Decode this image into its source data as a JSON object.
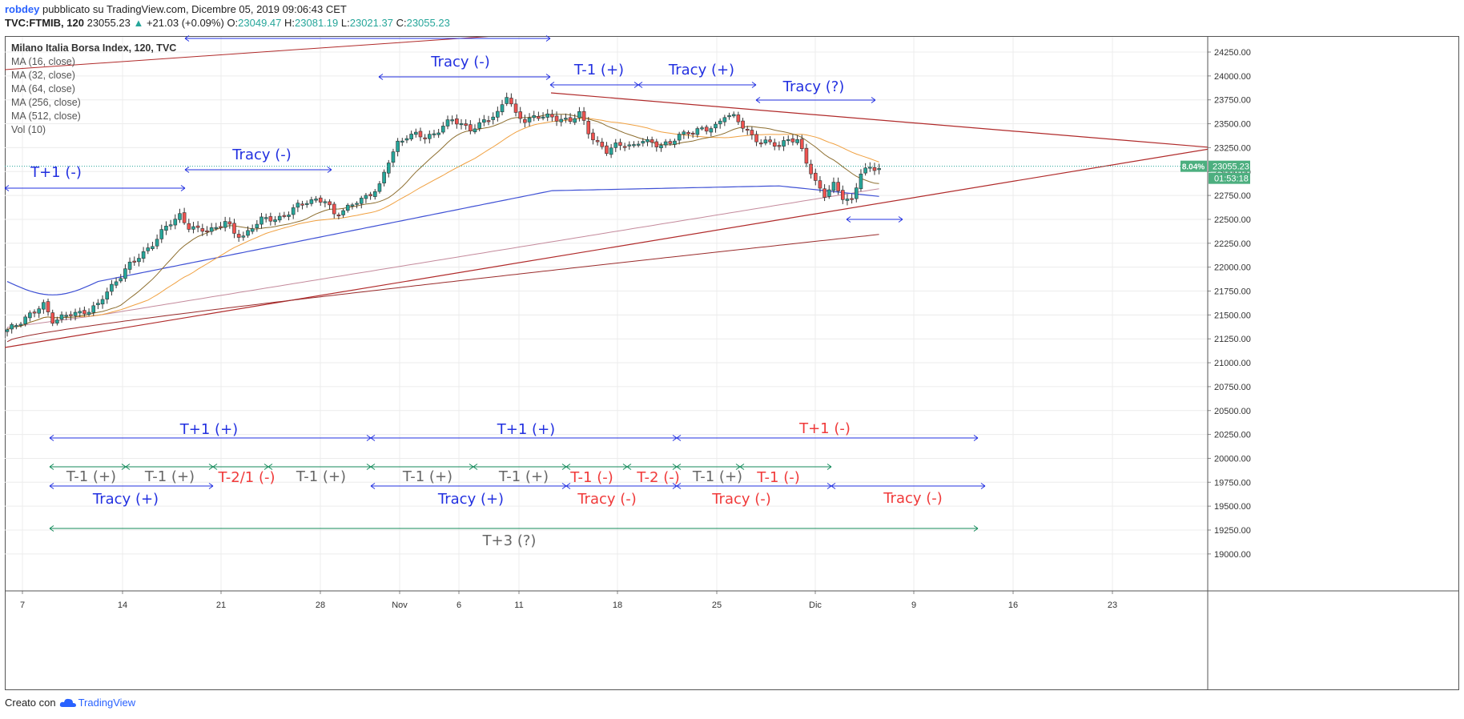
{
  "header": {
    "user": "robdey",
    "published": "pubblicato su TradingView.com, Dicembre 05, 2019 09:06:43 CET",
    "symbol": "TVC:FTMIB, 120",
    "last": "23055.23",
    "change": "+21.03 (+0.09%)",
    "o_label": "O:",
    "o_value": "23049.47",
    "h_label": "H:",
    "h_value": "23081.19",
    "l_label": "L:",
    "l_value": "23021.37",
    "c_label": "C:",
    "c_value": "23055.23"
  },
  "legend": {
    "title": "Milano Italia Borsa Index, 120, TVC",
    "items": [
      "MA (16, close)",
      "MA (32, close)",
      "MA (64, close)",
      "MA (256, close)",
      "MA (512, close)",
      "Vol (10)"
    ]
  },
  "footer": {
    "created_with": "Creato con",
    "brand": "TradingView"
  },
  "chart_data": {
    "type": "candlestick",
    "title": "Milano Italia Borsa Index, 120, TVC",
    "x_ticks": [
      "7",
      "14",
      "21",
      "28",
      "Nov",
      "6",
      "11",
      "18",
      "25",
      "Dic",
      "9",
      "16",
      "23"
    ],
    "y_ticks": [
      "24250.00",
      "24000.00",
      "23750.00",
      "23500.00",
      "23250.00",
      "23000.00",
      "22750.00",
      "22500.00",
      "22250.00",
      "22000.00",
      "21750.00",
      "21500.00",
      "21250.00",
      "21000.00",
      "20750.00",
      "20500.00",
      "20250.00",
      "20000.00",
      "19750.00",
      "19500.00",
      "19250.00",
      "19000.00"
    ],
    "ylim": [
      18800,
      24450
    ],
    "last_price": {
      "value": 23055.23,
      "label": "23055.23",
      "percent_label": "8.04%",
      "countdown": "01:53:18"
    },
    "colors": {
      "up": "#26a69a",
      "down": "#ef5350",
      "ma16": "#8d6e2f",
      "ma32": "#f0a040",
      "ma64": "#3f51d5",
      "ma256": "#c48a9c",
      "ma512": "#9a2b2b",
      "trend": "#b02a2a",
      "blue": "#2230e0",
      "red": "#f03a3a",
      "gray": "#666666",
      "green": "#138a5a"
    },
    "price_path": [
      [
        0,
        21330
      ],
      [
        2,
        21400
      ],
      [
        4,
        21480
      ],
      [
        6,
        21530
      ],
      [
        8,
        21600
      ],
      [
        10,
        21450
      ],
      [
        12,
        21480
      ],
      [
        14,
        21500
      ],
      [
        16,
        21520
      ],
      [
        18,
        21560
      ],
      [
        20,
        21600
      ],
      [
        22,
        21740
      ],
      [
        24,
        21860
      ],
      [
        26,
        21980
      ],
      [
        28,
        22060
      ],
      [
        30,
        22150
      ],
      [
        32,
        22250
      ],
      [
        34,
        22360
      ],
      [
        36,
        22460
      ],
      [
        38,
        22550
      ],
      [
        40,
        22420
      ],
      [
        42,
        22380
      ],
      [
        44,
        22390
      ],
      [
        46,
        22420
      ],
      [
        48,
        22470
      ],
      [
        50,
        22350
      ],
      [
        52,
        22330
      ],
      [
        54,
        22420
      ],
      [
        56,
        22490
      ],
      [
        58,
        22510
      ],
      [
        60,
        22520
      ],
      [
        62,
        22560
      ],
      [
        64,
        22640
      ],
      [
        66,
        22700
      ],
      [
        68,
        22700
      ],
      [
        70,
        22680
      ],
      [
        72,
        22560
      ],
      [
        74,
        22600
      ],
      [
        76,
        22650
      ],
      [
        78,
        22700
      ],
      [
        80,
        22780
      ],
      [
        82,
        22850
      ],
      [
        84,
        23100
      ],
      [
        86,
        23300
      ],
      [
        88,
        23380
      ],
      [
        90,
        23380
      ],
      [
        92,
        23350
      ],
      [
        94,
        23400
      ],
      [
        96,
        23480
      ],
      [
        98,
        23530
      ],
      [
        100,
        23500
      ],
      [
        102,
        23450
      ],
      [
        104,
        23480
      ],
      [
        106,
        23550
      ],
      [
        108,
        23620
      ],
      [
        110,
        23800
      ],
      [
        112,
        23580
      ],
      [
        114,
        23540
      ],
      [
        116,
        23580
      ],
      [
        118,
        23570
      ],
      [
        120,
        23560
      ],
      [
        122,
        23560
      ],
      [
        124,
        23530
      ],
      [
        126,
        23600
      ],
      [
        128,
        23420
      ],
      [
        130,
        23300
      ],
      [
        132,
        23200
      ],
      [
        134,
        23270
      ],
      [
        136,
        23300
      ],
      [
        138,
        23260
      ],
      [
        140,
        23320
      ],
      [
        142,
        23300
      ],
      [
        144,
        23290
      ],
      [
        146,
        23280
      ],
      [
        148,
        23380
      ],
      [
        150,
        23420
      ],
      [
        152,
        23430
      ],
      [
        154,
        23430
      ],
      [
        156,
        23480
      ],
      [
        158,
        23600
      ],
      [
        160,
        23560
      ],
      [
        162,
        23470
      ],
      [
        164,
        23380
      ],
      [
        166,
        23300
      ],
      [
        168,
        23290
      ],
      [
        170,
        23280
      ],
      [
        172,
        23350
      ],
      [
        174,
        23310
      ],
      [
        176,
        23100
      ],
      [
        178,
        22900
      ],
      [
        180,
        22750
      ],
      [
        182,
        22850
      ],
      [
        184,
        22740
      ],
      [
        186,
        22700
      ],
      [
        188,
        22980
      ],
      [
        190,
        23030
      ],
      [
        192,
        23055
      ]
    ]
  },
  "annotations": [
    {
      "text": "Tracy (-)",
      "color": "blue",
      "size": 18,
      "cx": 575,
      "ty": 83,
      "arrow": {
        "x1": 473,
        "x2": 687,
        "y": 96,
        "color": "blue"
      }
    },
    {
      "text": "T-1 (+)",
      "color": "blue",
      "size": 18,
      "cx": 748,
      "ty": 93,
      "arrow": {
        "x1": 687,
        "x2": 797,
        "y": 106,
        "color": "blue"
      }
    },
    {
      "text": "Tracy (+)",
      "color": "blue",
      "size": 18,
      "cx": 876,
      "ty": 93,
      "arrow": {
        "x1": 797,
        "x2": 944,
        "y": 106,
        "color": "blue"
      }
    },
    {
      "text": "Tracy (?)",
      "color": "blue",
      "size": 18,
      "cx": 1016,
      "ty": 114,
      "arrow": {
        "x1": 944,
        "x2": 1093,
        "y": 125,
        "color": "blue"
      }
    },
    {
      "text": "Tracy (-)",
      "color": "blue",
      "size": 18,
      "cx": 327,
      "ty": 199,
      "arrow": {
        "x1": 231,
        "x2": 414,
        "y": 212,
        "color": "blue"
      }
    },
    {
      "text": "T+1 (-)",
      "color": "blue",
      "size": 18,
      "cx": 70,
      "ty": 221,
      "arrow": {
        "x1": 6,
        "x2": 231,
        "y": 235,
        "color": "blue"
      }
    },
    {
      "text": "T+1 (+)",
      "color": "blue",
      "size": 18,
      "cx": 261,
      "ty": 542,
      "arrow": {
        "x1": 62,
        "x2": 463,
        "y": 547,
        "color": "blue"
      }
    },
    {
      "text": "T+1 (+)",
      "color": "blue",
      "size": 18,
      "cx": 657,
      "ty": 542,
      "arrow": {
        "x1": 463,
        "x2": 845,
        "y": 547,
        "color": "blue"
      }
    },
    {
      "text": "T+1 (-)",
      "color": "red",
      "size": 18,
      "cx": 1030,
      "ty": 541,
      "arrow": {
        "x1": 845,
        "x2": 1221,
        "y": 547,
        "color": "blue"
      }
    },
    {
      "text": "T-1 (+)",
      "color": "gray",
      "size": 18,
      "cx": 114,
      "ty": 601,
      "arrow": {
        "x1": 62,
        "x2": 157,
        "y": 583,
        "color": "green"
      }
    },
    {
      "text": "T-1 (+)",
      "color": "gray",
      "size": 18,
      "cx": 212,
      "ty": 601,
      "arrow": {
        "x1": 157,
        "x2": 266,
        "y": 583,
        "color": "green"
      }
    },
    {
      "text": "T-2/1 (-)",
      "color": "red",
      "size": 18,
      "cx": 308,
      "ty": 602,
      "arrow": {
        "x1": 266,
        "x2": 335,
        "y": 583,
        "color": "green"
      }
    },
    {
      "text": "T-1 (+)",
      "color": "gray",
      "size": 18,
      "cx": 401,
      "ty": 601,
      "arrow": {
        "x1": 335,
        "x2": 463,
        "y": 583,
        "color": "green"
      }
    },
    {
      "text": "T-1 (+)",
      "color": "gray",
      "size": 18,
      "cx": 534,
      "ty": 601,
      "arrow": {
        "x1": 463,
        "x2": 591,
        "y": 583,
        "color": "green"
      }
    },
    {
      "text": "T-1 (+)",
      "color": "gray",
      "size": 18,
      "cx": 654,
      "ty": 601,
      "arrow": {
        "x1": 591,
        "x2": 707,
        "y": 583,
        "color": "green"
      }
    },
    {
      "text": "T-1 (-)",
      "color": "red",
      "size": 18,
      "cx": 739,
      "ty": 602,
      "arrow": {
        "x1": 707,
        "x2": 783,
        "y": 583,
        "color": "green"
      }
    },
    {
      "text": "T-2 (-)",
      "color": "red",
      "size": 18,
      "cx": 822,
      "ty": 602,
      "arrow": {
        "x1": 783,
        "x2": 845,
        "y": 583,
        "color": "green"
      }
    },
    {
      "text": "T-1 (+)",
      "color": "gray",
      "size": 18,
      "cx": 896,
      "ty": 601,
      "arrow": {
        "x1": 845,
        "x2": 924,
        "y": 583,
        "color": "green"
      }
    },
    {
      "text": "T-1 (-)",
      "color": "red",
      "size": 18,
      "cx": 972,
      "ty": 602,
      "arrow": {
        "x1": 924,
        "x2": 1038,
        "y": 583,
        "color": "green"
      }
    },
    {
      "text": "Tracy (+)",
      "color": "blue",
      "size": 18,
      "cx": 157,
      "ty": 629,
      "arrow": {
        "x1": 62,
        "x2": 266,
        "y": 607,
        "color": "blue"
      }
    },
    {
      "text": "Tracy (+)",
      "color": "blue",
      "size": 18,
      "cx": 588,
      "ty": 629,
      "arrow": {
        "x1": 463,
        "x2": 707,
        "y": 607,
        "color": "blue"
      }
    },
    {
      "text": "Tracy (-)",
      "color": "red",
      "size": 18,
      "cx": 758,
      "ty": 629,
      "arrow": {
        "x1": 707,
        "x2": 845,
        "y": 607,
        "color": "blue"
      }
    },
    {
      "text": "Tracy (-)",
      "color": "red",
      "size": 18,
      "cx": 926,
      "ty": 629,
      "arrow": {
        "x1": 845,
        "x2": 1038,
        "y": 607,
        "color": "blue"
      }
    },
    {
      "text": "Tracy (-)",
      "color": "red",
      "size": 18,
      "cx": 1140,
      "ty": 628,
      "arrow": {
        "x1": 1038,
        "x2": 1230,
        "y": 607,
        "color": "blue"
      }
    },
    {
      "text": "T+3 (?)",
      "color": "gray",
      "size": 18,
      "cx": 636,
      "ty": 681,
      "arrow": {
        "x1": 62,
        "x2": 1221,
        "y": 660,
        "color": "green"
      }
    },
    {
      "text": "",
      "color": "blue",
      "size": 18,
      "cx": 0,
      "ty": 0,
      "arrow": {
        "x1": 231,
        "x2": 687,
        "y": 48,
        "color": "blue"
      }
    },
    {
      "text": "",
      "color": "blue",
      "size": 18,
      "cx": 0,
      "ty": 0,
      "arrow": {
        "x1": 1057,
        "x2": 1127,
        "y": 274,
        "color": "blue"
      }
    }
  ]
}
